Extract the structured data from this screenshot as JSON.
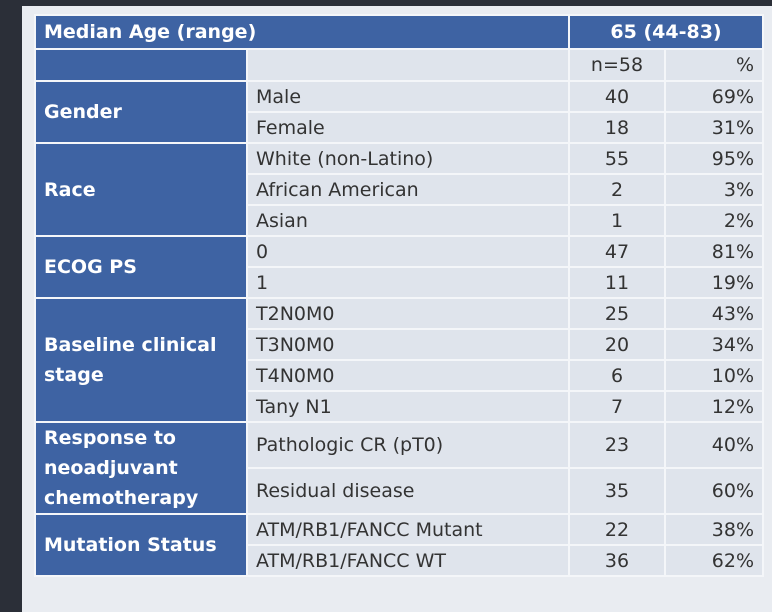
{
  "table": {
    "header": {
      "label": "Median Age (range)",
      "value": "65 (44-83)"
    },
    "subheader": {
      "n": "n=58",
      "pct": "%"
    },
    "groups": [
      {
        "label": "Gender",
        "rows": [
          [
            "Male",
            "40",
            "69%"
          ],
          [
            "Female",
            "18",
            "31%"
          ]
        ]
      },
      {
        "label": "Race",
        "rows": [
          [
            "White (non-Latino)",
            "55",
            "95%"
          ],
          [
            "African American",
            "2",
            "3%"
          ],
          [
            "Asian",
            "1",
            "2%"
          ]
        ]
      },
      {
        "label": "ECOG PS",
        "rows": [
          [
            "0",
            "47",
            "81%"
          ],
          [
            "1",
            "11",
            "19%"
          ]
        ]
      },
      {
        "label": "Baseline clinical stage",
        "rows": [
          [
            "T2N0M0",
            "25",
            "43%"
          ],
          [
            "T3N0M0",
            "20",
            "34%"
          ],
          [
            "T4N0M0",
            "6",
            "10%"
          ],
          [
            "Tany N1",
            "7",
            "12%"
          ]
        ]
      },
      {
        "label": "Response to neoadjuvant chemotherapy",
        "rows": [
          [
            "Pathologic CR (pT0)",
            "23",
            "40%"
          ],
          [
            "Residual disease",
            "35",
            "60%"
          ]
        ]
      },
      {
        "label": "Mutation Status",
        "rows": [
          [
            "ATM/RB1/FANCC Mutant",
            "22",
            "38%"
          ],
          [
            "ATM/RB1/FANCC WT",
            "36",
            "62%"
          ]
        ]
      }
    ]
  }
}
